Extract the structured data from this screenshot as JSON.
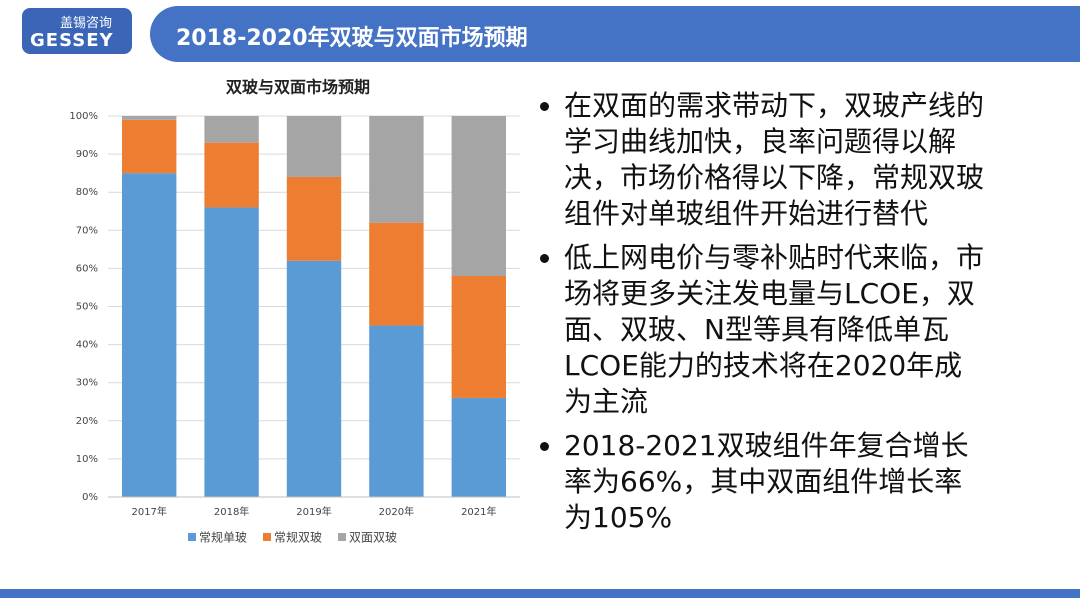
{
  "header": {
    "logo_name": "盖锡咨询",
    "logo_brand": "GESSEY",
    "title": "2018-2020年双玻与双面市场预期"
  },
  "chart_data": {
    "type": "stacked_bar",
    "title": "双玻与双面市场预期",
    "categories": [
      "2017年",
      "2018年",
      "2019年",
      "2020年",
      "2021年"
    ],
    "series": [
      {
        "name": "常规单玻",
        "color": "#5b9bd5",
        "values": [
          85,
          76,
          62,
          45,
          26
        ]
      },
      {
        "name": "常规双玻",
        "color": "#ed7d31",
        "values": [
          14,
          17,
          22,
          27,
          32
        ]
      },
      {
        "name": "双面双玻",
        "color": "#a5a5a5",
        "values": [
          1,
          7,
          16,
          28,
          42
        ]
      }
    ],
    "ylim": [
      0,
      100
    ],
    "yticks": [
      {
        "value": 0,
        "label": "0%"
      },
      {
        "value": 10,
        "label": "10%"
      },
      {
        "value": 20,
        "label": "20%"
      },
      {
        "value": 30,
        "label": "30%"
      },
      {
        "value": 40,
        "label": "40%"
      },
      {
        "value": 50,
        "label": "50%"
      },
      {
        "value": 60,
        "label": "60%"
      },
      {
        "value": 70,
        "label": "70%"
      },
      {
        "value": 80,
        "label": "80%"
      },
      {
        "value": 90,
        "label": "90%"
      },
      {
        "value": 100,
        "label": "100%"
      }
    ],
    "grid": true,
    "legend": "bottom"
  },
  "bullets": [
    "在双面的需求带动下，双玻产线的学习曲线加快，良率问题得以解决，市场价格得以下降，常规双玻组件对单玻组件开始进行替代",
    "低上网电价与零补贴时代来临，市场将更多关注发电量与LCOE，双面、双玻、N型等具有降低单瓦LCOE能力的技术将在2020年成为主流",
    "2018-2021双玻组件年复合增长率为66%，其中双面组件增长率为105%"
  ]
}
